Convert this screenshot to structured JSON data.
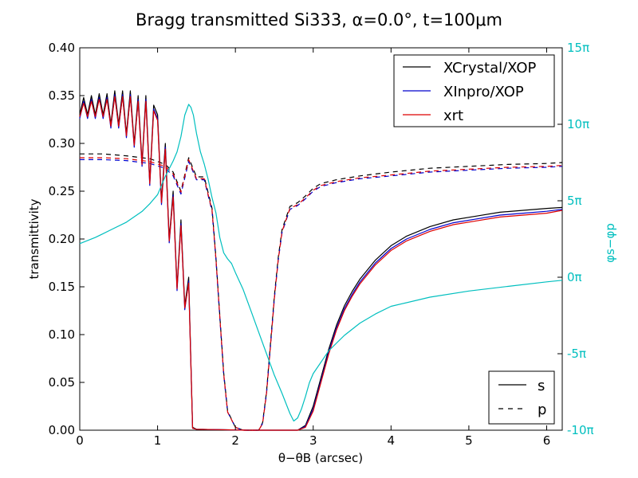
{
  "chart_data": {
    "type": "line",
    "title": "Bragg transmitted Si333, α=0.0°, t=100μm",
    "xlabel": "θ−θB (arcsec)",
    "ylabel": "transmittivity",
    "ylabel_right": "φs−φp",
    "xlim": [
      0,
      6.2
    ],
    "ylim": [
      0,
      0.4
    ],
    "ylim_right": [
      -10,
      15
    ],
    "x_ticks": [
      "0",
      "1",
      "2",
      "3",
      "4",
      "5",
      "6"
    ],
    "y_ticks": [
      "0.00",
      "0.05",
      "0.10",
      "0.15",
      "0.20",
      "0.25",
      "0.30",
      "0.35",
      "0.40"
    ],
    "y_ticks_right": [
      "-10π",
      "-5π",
      "0π",
      "5π",
      "10π",
      "15π"
    ],
    "grid": false,
    "legend_codes": {
      "placement": "top-right",
      "entries": [
        {
          "label": "XCrystal/XOP",
          "color": "#000000"
        },
        {
          "label": "XInpro/XOP",
          "color": "#0000cc"
        },
        {
          "label": "xrt",
          "color": "#dd0000"
        }
      ]
    },
    "legend_styles": {
      "placement": "bottom-right",
      "entries": [
        {
          "label": "s",
          "dash": "solid"
        },
        {
          "label": "p",
          "dash": "dashed"
        }
      ]
    },
    "series": [
      {
        "name": "XCrystal/XOP",
        "polarization": "s",
        "color": "#000000",
        "x": [
          0,
          0.05,
          0.1,
          0.15,
          0.2,
          0.25,
          0.3,
          0.35,
          0.4,
          0.45,
          0.5,
          0.55,
          0.6,
          0.65,
          0.7,
          0.75,
          0.8,
          0.85,
          0.9,
          0.95,
          1.0,
          1.05,
          1.1,
          1.15,
          1.2,
          1.25,
          1.3,
          1.35,
          1.4,
          1.45,
          1.5,
          2.15,
          2.3,
          2.5,
          2.8,
          2.9,
          3.0,
          3.1,
          3.2,
          3.3,
          3.4,
          3.5,
          3.6,
          3.8,
          4.0,
          4.2,
          4.5,
          4.8,
          5.1,
          5.4,
          5.7,
          6.0,
          6.2
        ],
        "y": [
          0.33,
          0.348,
          0.33,
          0.35,
          0.33,
          0.352,
          0.33,
          0.352,
          0.32,
          0.355,
          0.32,
          0.355,
          0.31,
          0.355,
          0.3,
          0.35,
          0.28,
          0.35,
          0.26,
          0.34,
          0.33,
          0.24,
          0.3,
          0.2,
          0.25,
          0.15,
          0.22,
          0.13,
          0.16,
          0.003,
          0.001,
          0.0,
          0.0,
          0.0,
          0.0,
          0.005,
          0.025,
          0.055,
          0.085,
          0.11,
          0.13,
          0.145,
          0.158,
          0.178,
          0.193,
          0.203,
          0.213,
          0.22,
          0.224,
          0.228,
          0.23,
          0.232,
          0.233
        ]
      },
      {
        "name": "XCrystal/XOP",
        "polarization": "p",
        "color": "#000000",
        "x": [
          0,
          0.3,
          0.6,
          0.9,
          1.1,
          1.2,
          1.3,
          1.4,
          1.5,
          1.6,
          1.7,
          1.75,
          1.8,
          1.85,
          1.9,
          2.0,
          2.1,
          2.3,
          2.35,
          2.4,
          2.45,
          2.5,
          2.55,
          2.6,
          2.7,
          2.8,
          2.9,
          3.0,
          3.1,
          3.3,
          3.6,
          4.0,
          4.5,
          5.0,
          5.5,
          6.0,
          6.2
        ],
        "y": [
          0.289,
          0.289,
          0.287,
          0.284,
          0.278,
          0.27,
          0.25,
          0.285,
          0.265,
          0.265,
          0.232,
          0.18,
          0.12,
          0.06,
          0.02,
          0.003,
          0.0,
          0.0,
          0.008,
          0.04,
          0.09,
          0.14,
          0.18,
          0.21,
          0.234,
          0.238,
          0.245,
          0.253,
          0.258,
          0.262,
          0.266,
          0.27,
          0.274,
          0.276,
          0.278,
          0.279,
          0.28
        ]
      },
      {
        "name": "XInpro/XOP",
        "polarization": "s",
        "color": "#0000cc",
        "x": [
          0,
          0.05,
          0.1,
          0.15,
          0.2,
          0.25,
          0.3,
          0.35,
          0.4,
          0.45,
          0.5,
          0.55,
          0.6,
          0.65,
          0.7,
          0.75,
          0.8,
          0.85,
          0.9,
          0.95,
          1.0,
          1.05,
          1.1,
          1.15,
          1.2,
          1.25,
          1.3,
          1.35,
          1.4,
          1.45,
          1.5,
          2.15,
          2.3,
          2.5,
          2.8,
          2.9,
          3.0,
          3.1,
          3.2,
          3.3,
          3.4,
          3.5,
          3.6,
          3.8,
          4.0,
          4.2,
          4.5,
          4.8,
          5.1,
          5.4,
          5.7,
          6.0,
          6.2
        ],
        "y": [
          0.326,
          0.344,
          0.326,
          0.346,
          0.326,
          0.348,
          0.326,
          0.348,
          0.316,
          0.351,
          0.316,
          0.351,
          0.306,
          0.351,
          0.296,
          0.346,
          0.276,
          0.346,
          0.256,
          0.336,
          0.326,
          0.236,
          0.296,
          0.196,
          0.246,
          0.146,
          0.216,
          0.126,
          0.156,
          0.002,
          0.001,
          0.0,
          0.0,
          0.0,
          0.0,
          0.004,
          0.022,
          0.052,
          0.082,
          0.107,
          0.127,
          0.142,
          0.155,
          0.175,
          0.19,
          0.2,
          0.21,
          0.217,
          0.221,
          0.225,
          0.227,
          0.229,
          0.231
        ]
      },
      {
        "name": "XInpro/XOP",
        "polarization": "p",
        "color": "#0000cc",
        "x": [
          0,
          0.3,
          0.6,
          0.9,
          1.1,
          1.2,
          1.3,
          1.4,
          1.5,
          1.6,
          1.7,
          1.75,
          1.8,
          1.85,
          1.9,
          2.0,
          2.1,
          2.3,
          2.35,
          2.4,
          2.45,
          2.5,
          2.55,
          2.6,
          2.7,
          2.8,
          2.9,
          3.0,
          3.1,
          3.3,
          3.6,
          4.0,
          4.5,
          5.0,
          5.5,
          6.0,
          6.2
        ],
        "y": [
          0.283,
          0.283,
          0.282,
          0.279,
          0.274,
          0.266,
          0.247,
          0.281,
          0.262,
          0.262,
          0.229,
          0.178,
          0.118,
          0.058,
          0.019,
          0.003,
          0.0,
          0.0,
          0.007,
          0.038,
          0.087,
          0.137,
          0.177,
          0.207,
          0.231,
          0.235,
          0.242,
          0.25,
          0.255,
          0.259,
          0.263,
          0.266,
          0.27,
          0.272,
          0.274,
          0.275,
          0.276
        ]
      },
      {
        "name": "xrt",
        "polarization": "s",
        "color": "#dd0000",
        "x": [
          0,
          0.05,
          0.1,
          0.15,
          0.2,
          0.25,
          0.3,
          0.35,
          0.4,
          0.45,
          0.5,
          0.55,
          0.6,
          0.65,
          0.7,
          0.75,
          0.8,
          0.85,
          0.9,
          0.95,
          1.0,
          1.05,
          1.1,
          1.15,
          1.2,
          1.25,
          1.3,
          1.35,
          1.4,
          1.45,
          1.5,
          2.15,
          2.3,
          2.5,
          2.8,
          2.9,
          3.0,
          3.1,
          3.2,
          3.3,
          3.4,
          3.5,
          3.6,
          3.8,
          4.0,
          4.2,
          4.5,
          4.8,
          5.1,
          5.4,
          5.7,
          6.0,
          6.2
        ],
        "y": [
          0.328,
          0.342,
          0.328,
          0.344,
          0.328,
          0.346,
          0.328,
          0.346,
          0.318,
          0.349,
          0.318,
          0.349,
          0.308,
          0.349,
          0.298,
          0.344,
          0.278,
          0.344,
          0.258,
          0.334,
          0.324,
          0.238,
          0.294,
          0.198,
          0.244,
          0.148,
          0.214,
          0.128,
          0.154,
          0.002,
          0.001,
          0.0,
          0.0,
          0.0,
          0.0,
          0.003,
          0.02,
          0.05,
          0.08,
          0.105,
          0.125,
          0.14,
          0.153,
          0.173,
          0.188,
          0.198,
          0.208,
          0.215,
          0.219,
          0.223,
          0.225,
          0.227,
          0.23
        ]
      },
      {
        "name": "xrt",
        "polarization": "p",
        "color": "#dd0000",
        "x": [
          0,
          0.3,
          0.6,
          0.9,
          1.1,
          1.2,
          1.3,
          1.4,
          1.5,
          1.6,
          1.7,
          1.75,
          1.8,
          1.85,
          1.9,
          2.0,
          2.1,
          2.3,
          2.35,
          2.4,
          2.45,
          2.5,
          2.55,
          2.6,
          2.7,
          2.8,
          2.9,
          3.0,
          3.1,
          3.3,
          3.6,
          4.0,
          4.5,
          5.0,
          5.5,
          6.0,
          6.2
        ],
        "y": [
          0.285,
          0.285,
          0.284,
          0.281,
          0.276,
          0.268,
          0.249,
          0.283,
          0.263,
          0.263,
          0.23,
          0.179,
          0.119,
          0.059,
          0.019,
          0.003,
          0.0,
          0.0,
          0.007,
          0.039,
          0.088,
          0.138,
          0.178,
          0.208,
          0.232,
          0.236,
          0.243,
          0.251,
          0.256,
          0.26,
          0.264,
          0.267,
          0.271,
          0.273,
          0.275,
          0.276,
          0.277
        ]
      },
      {
        "name": "φs−φp",
        "axis": "right",
        "color": "#00bfbf",
        "x": [
          0,
          0.2,
          0.4,
          0.6,
          0.8,
          0.9,
          1.0,
          1.1,
          1.2,
          1.25,
          1.3,
          1.35,
          1.4,
          1.43,
          1.46,
          1.5,
          1.55,
          1.6,
          1.65,
          1.7,
          1.75,
          1.8,
          1.85,
          1.9,
          1.95,
          2.0,
          2.1,
          2.2,
          2.3,
          2.4,
          2.5,
          2.6,
          2.7,
          2.75,
          2.8,
          2.85,
          2.9,
          2.95,
          3.0,
          3.2,
          3.4,
          3.6,
          3.8,
          4.0,
          4.5,
          5.0,
          5.5,
          6.0,
          6.2
        ],
        "y": [
          2.2,
          2.6,
          3.1,
          3.6,
          4.3,
          4.8,
          5.4,
          6.6,
          7.6,
          8.2,
          9.2,
          10.6,
          11.3,
          11.1,
          10.6,
          9.4,
          8.2,
          7.4,
          6.4,
          5.2,
          4.2,
          2.6,
          1.6,
          1.2,
          0.9,
          0.3,
          -0.8,
          -2.2,
          -3.6,
          -5.0,
          -6.4,
          -7.6,
          -8.9,
          -9.4,
          -9.2,
          -8.6,
          -7.8,
          -6.9,
          -6.3,
          -4.8,
          -3.8,
          -3.0,
          -2.4,
          -1.9,
          -1.3,
          -0.9,
          -0.6,
          -0.3,
          -0.2
        ]
      }
    ]
  }
}
